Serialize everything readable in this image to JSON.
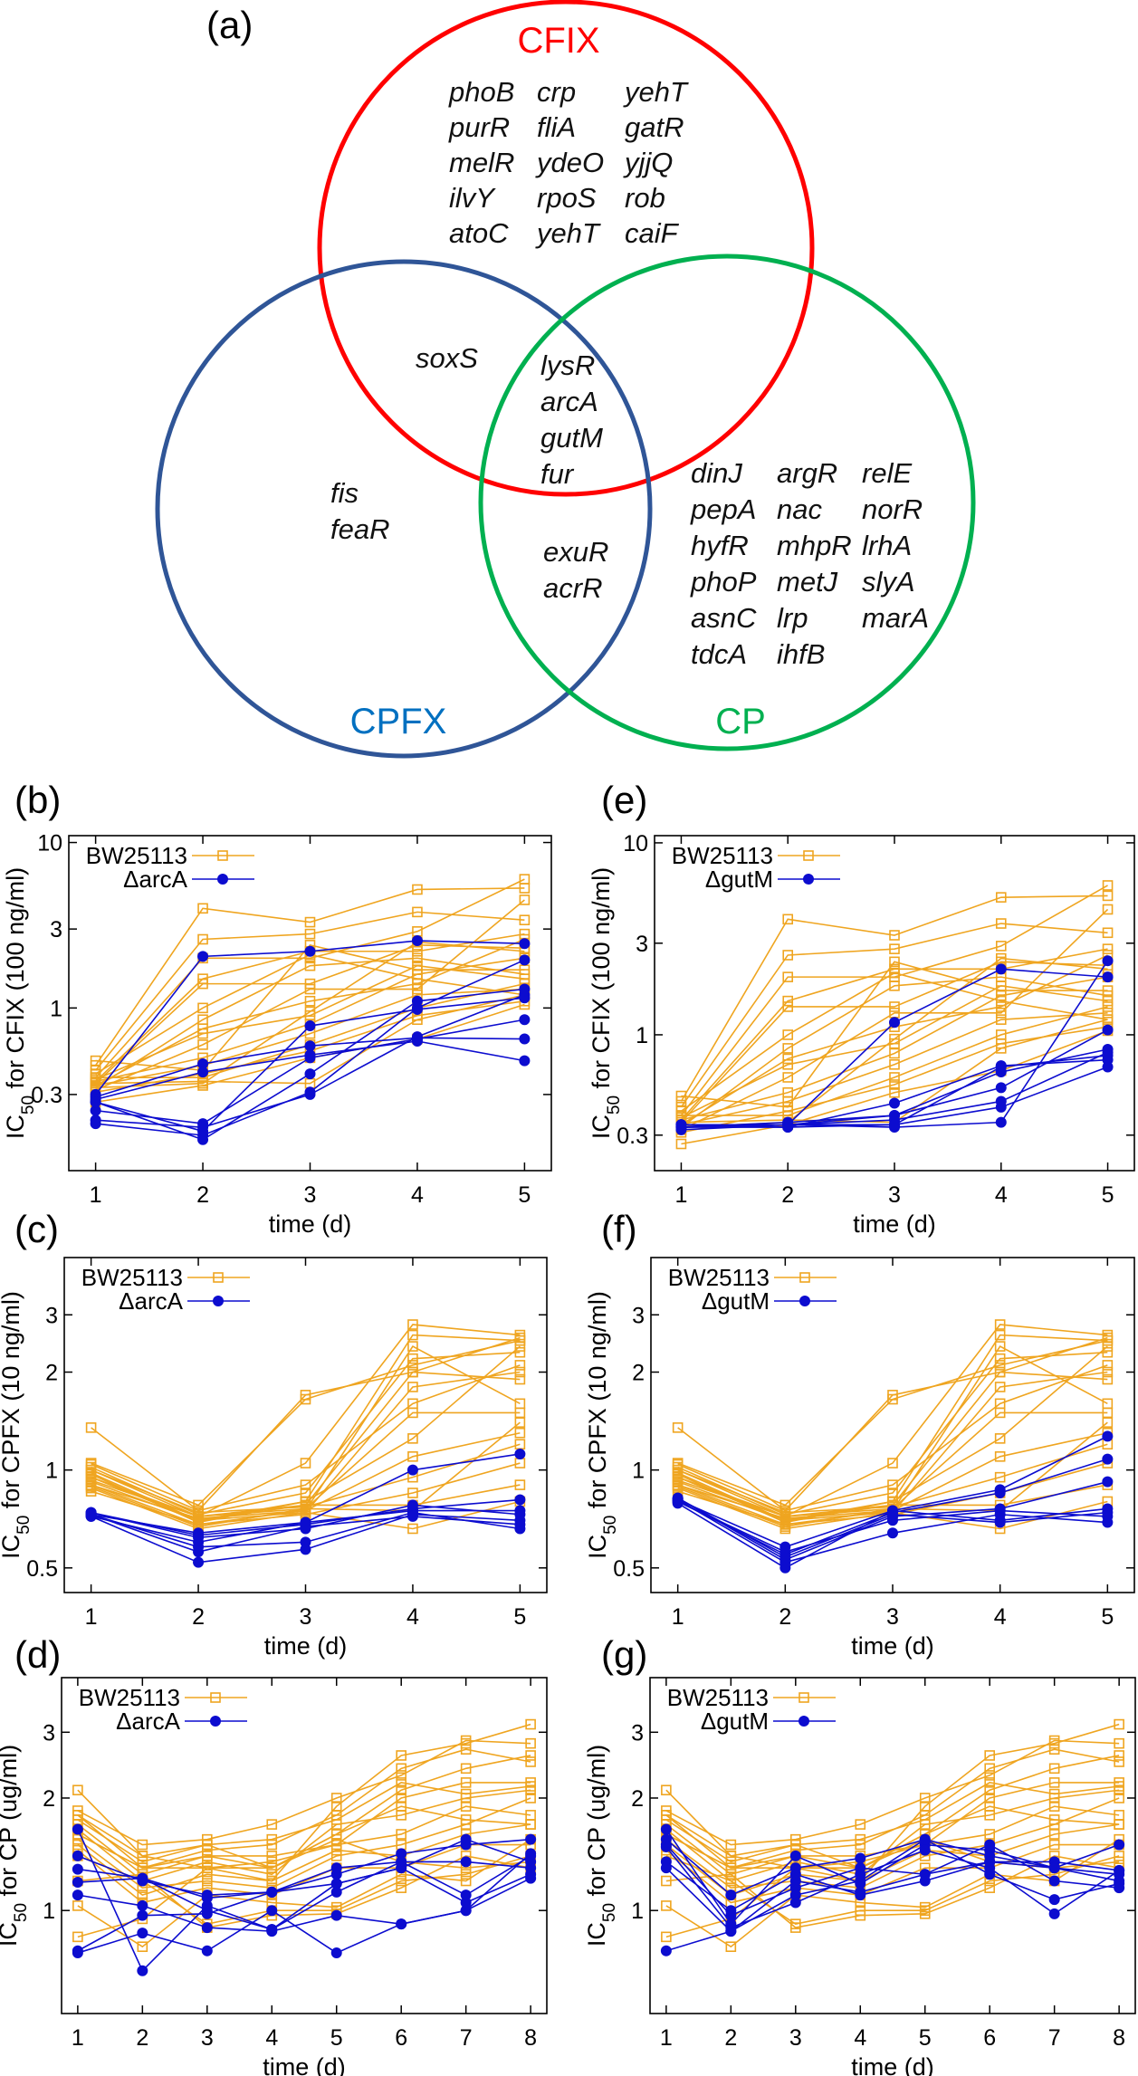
{
  "venn": {
    "panel_label": "(a)",
    "sets": [
      {
        "name": "CFIX",
        "label_color": "#ff0000",
        "circle_color": "#ff0000"
      },
      {
        "name": "CPFX",
        "label_color": "#0070c0",
        "circle_color": "#2f5597"
      },
      {
        "name": "CP",
        "label_color": "#00b050",
        "circle_color": "#00b050"
      }
    ],
    "regions": {
      "cfix_only": [
        [
          "phoB",
          "purR",
          "melR",
          "ilvY",
          "atoC"
        ],
        [
          "crp",
          "fliA",
          "ydeO",
          "rpoS",
          "yehT"
        ],
        [
          "yehT",
          "gatR",
          "yjjQ",
          "rob",
          "caiF"
        ]
      ],
      "cfix_cpfx": [
        [
          "soxS"
        ]
      ],
      "all_three": [
        [
          "lysR",
          "arcA",
          "gutM",
          "fur"
        ]
      ],
      "cpfx_only": [
        [
          "fis",
          "feaR"
        ]
      ],
      "cpfx_cp": [
        [
          "exuR",
          "acrR"
        ]
      ],
      "cp_only": [
        [
          "dinJ",
          "pepA",
          "hyfR",
          "phoP",
          "asnC",
          "tdcA"
        ],
        [
          "argR",
          "nac",
          "mhpR",
          "metJ",
          "lrp",
          "ihfB"
        ],
        [
          "relE",
          "norR",
          "lrhA",
          "slyA",
          "marA"
        ]
      ]
    }
  },
  "colors": {
    "control": "#efa520",
    "mutant": "#0c0ccf"
  },
  "datasets": {
    "cfix_bw25113": [
      [
        0.45,
        4.0,
        3.3,
        5.2,
        5.3
      ],
      [
        0.42,
        2.6,
        2.8,
        3.8,
        3.4
      ],
      [
        0.38,
        2.0,
        2.0,
        2.9,
        6.0
      ],
      [
        0.36,
        1.5,
        2.2,
        2.2,
        2.8
      ],
      [
        0.35,
        1.4,
        1.4,
        2.4,
        2.3
      ],
      [
        0.4,
        1.0,
        2.1,
        1.5,
        1.2
      ],
      [
        0.33,
        0.85,
        1.8,
        2.0,
        1.6
      ],
      [
        0.34,
        0.75,
        1.1,
        1.4,
        2.6
      ],
      [
        0.37,
        0.7,
        0.9,
        1.8,
        1.5
      ],
      [
        0.32,
        0.6,
        1.3,
        1.3,
        4.5
      ],
      [
        0.36,
        0.5,
        0.8,
        1.6,
        2.0
      ],
      [
        0.34,
        0.45,
        0.7,
        1.2,
        1.3
      ],
      [
        0.31,
        0.4,
        0.55,
        0.9,
        1.1
      ],
      [
        0.38,
        0.38,
        0.6,
        1.0,
        1.4
      ],
      [
        0.35,
        0.36,
        0.35,
        0.85,
        1.2
      ],
      [
        0.33,
        0.35,
        0.95,
        2.5,
        2.2
      ],
      [
        0.48,
        0.42,
        2.4,
        1.7,
        1.7
      ],
      [
        0.27,
        0.34,
        0.5,
        0.65,
        1.05
      ]
    ],
    "cpfx_bw25113": [
      [
        1.35,
        0.75,
        1.7,
        2.0,
        1.9
      ],
      [
        1.05,
        0.78,
        1.65,
        2.1,
        2.5
      ],
      [
        1.0,
        0.72,
        1.05,
        2.8,
        2.6
      ],
      [
        0.95,
        0.7,
        0.8,
        2.6,
        2.5
      ],
      [
        0.9,
        0.68,
        0.75,
        2.4,
        1.6
      ],
      [
        1.02,
        0.73,
        0.85,
        2.2,
        2.3
      ],
      [
        0.98,
        0.7,
        0.78,
        2.0,
        2.55
      ],
      [
        0.88,
        0.66,
        0.74,
        1.8,
        2.0
      ],
      [
        0.93,
        0.72,
        0.76,
        1.5,
        1.5
      ],
      [
        0.97,
        0.69,
        0.8,
        1.25,
        2.4
      ],
      [
        0.9,
        0.71,
        0.75,
        1.1,
        1.3
      ],
      [
        1.0,
        0.74,
        0.77,
        0.95,
        1.2
      ],
      [
        0.86,
        0.68,
        0.73,
        0.85,
        1.05
      ],
      [
        0.95,
        0.72,
        0.78,
        0.78,
        0.9
      ],
      [
        0.92,
        0.7,
        0.74,
        0.66,
        0.8
      ],
      [
        1.04,
        0.75,
        0.9,
        1.6,
        2.1
      ],
      [
        0.89,
        0.67,
        0.76,
        0.75,
        1.4
      ]
    ],
    "cp_bw25113": [
      [
        2.1,
        1.4,
        1.3,
        1.2,
        1.9,
        2.6,
        2.8,
        3.15
      ],
      [
        1.85,
        1.5,
        1.55,
        1.7,
        2.0,
        2.3,
        2.85,
        2.8
      ],
      [
        1.8,
        1.3,
        1.45,
        1.5,
        1.8,
        2.4,
        2.7,
        2.5
      ],
      [
        1.75,
        1.35,
        1.5,
        1.3,
        1.6,
        2.1,
        2.4,
        2.6
      ],
      [
        1.7,
        1.25,
        1.4,
        1.4,
        1.5,
        2.0,
        2.2,
        2.2
      ],
      [
        1.65,
        1.2,
        1.35,
        1.25,
        1.7,
        1.8,
        2.0,
        2.1
      ],
      [
        1.6,
        1.3,
        1.3,
        1.35,
        1.5,
        1.6,
        1.9,
        1.8
      ],
      [
        1.55,
        1.15,
        1.2,
        1.15,
        1.4,
        1.5,
        1.7,
        2.0
      ],
      [
        1.5,
        1.1,
        1.25,
        1.2,
        1.45,
        1.4,
        1.6,
        1.7
      ],
      [
        1.45,
        1.05,
        1.15,
        1.1,
        1.3,
        1.3,
        1.5,
        1.5
      ],
      [
        1.4,
        1.2,
        0.92,
        1.0,
        1.0,
        1.2,
        1.25,
        1.4
      ],
      [
        1.2,
        1.25,
        0.9,
        0.97,
        0.98,
        1.15,
        1.4,
        1.3
      ],
      [
        1.03,
        0.8,
        1.1,
        1.05,
        1.02,
        1.25,
        1.2,
        1.55
      ],
      [
        0.85,
        0.95,
        1.3,
        1.3,
        1.6,
        1.9,
        1.75,
        1.7
      ],
      [
        1.8,
        1.4,
        1.5,
        1.55,
        1.75,
        2.2,
        2.05,
        2.15
      ],
      [
        1.6,
        1.3,
        1.4,
        1.3,
        1.55,
        1.35,
        1.3,
        1.35
      ]
    ]
  },
  "chart_data": [
    {
      "panel": "(b)",
      "type": "line",
      "xlabel": "time (d)",
      "ylabel_prefix": "IC",
      "ylabel_sub": "50",
      "ylabel_suffix": " for CFIX (100 ng/ml)",
      "yscale": "log",
      "xlim": [
        0.75,
        5.25
      ],
      "ylim": [
        0.104,
        11
      ],
      "xticks": [
        1,
        2,
        3,
        4,
        5
      ],
      "yticks": [
        0.3,
        1,
        3,
        10
      ],
      "legend": "top-left",
      "grid": false,
      "series": [
        {
          "name": "BW25113",
          "marker": "open-square",
          "color": "#efa520",
          "dataset": "cfix_bw25113"
        },
        {
          "name": "ΔarcA",
          "marker": "filled-circle",
          "color": "#0c0ccf",
          "lines": [
            [
              0.3,
              2.05,
              2.2,
              2.55,
              2.45
            ],
            [
              0.29,
              0.46,
              0.59,
              0.66,
              0.65
            ],
            [
              0.28,
              0.41,
              0.52,
              0.63,
              0.48
            ],
            [
              0.24,
              0.2,
              0.5,
              0.65,
              0.85
            ],
            [
              0.21,
              0.19,
              0.3,
              0.67,
              1.2
            ],
            [
              0.2,
              0.17,
              0.31,
              1.0,
              1.95
            ],
            [
              0.27,
              0.18,
              0.78,
              0.98,
              1.15
            ],
            [
              0.27,
              0.16,
              0.4,
              1.1,
              1.3
            ]
          ]
        }
      ]
    },
    {
      "panel": "(c)",
      "type": "line",
      "xlabel": "time (d)",
      "ylabel_prefix": "IC",
      "ylabel_sub": "50",
      "ylabel_suffix": " for CPFX (10 ng/ml)",
      "yscale": "log",
      "xlim": [
        0.75,
        5.25
      ],
      "ylim": [
        0.42,
        4.5
      ],
      "xticks": [
        1,
        2,
        3,
        4,
        5
      ],
      "yticks": [
        0.5,
        1,
        2,
        3
      ],
      "legend": "top-left",
      "grid": false,
      "series": [
        {
          "name": "BW25113",
          "marker": "open-square",
          "color": "#efa520",
          "dataset": "cpfx_bw25113"
        },
        {
          "name": "ΔarcA",
          "marker": "filled-circle",
          "color": "#0c0ccf",
          "lines": [
            [
              0.73,
              0.64,
              0.69,
              1.0,
              1.12
            ],
            [
              0.74,
              0.63,
              0.68,
              0.76,
              0.81
            ],
            [
              0.72,
              0.6,
              0.69,
              0.75,
              0.75
            ],
            [
              0.73,
              0.58,
              0.6,
              0.74,
              0.66
            ],
            [
              0.72,
              0.52,
              0.57,
              0.73,
              0.7
            ],
            [
              0.74,
              0.62,
              0.66,
              0.78,
              0.73
            ],
            [
              0.73,
              0.56,
              0.67,
              0.72,
              0.68
            ]
          ]
        }
      ]
    },
    {
      "panel": "(d)",
      "type": "line",
      "xlabel": "time (d)",
      "ylabel_prefix": "IC",
      "ylabel_sub": "50",
      "ylabel_suffix": " for CP (ug/ml)",
      "yscale": "log",
      "xlim": [
        0.75,
        8.25
      ],
      "ylim": [
        0.53,
        4.2
      ],
      "xticks": [
        1,
        2,
        3,
        4,
        5,
        6,
        7,
        8
      ],
      "yticks": [
        1,
        2,
        3
      ],
      "legend": "top-left",
      "grid": false,
      "series": [
        {
          "name": "BW25113",
          "marker": "open-square",
          "color": "#efa520",
          "dataset": "cp_bw25113"
        },
        {
          "name": "ΔarcA",
          "marker": "filled-circle",
          "color": "#0c0ccf",
          "lines": [
            [
              1.65,
              0.69,
              1.03,
              0.89,
              1.12,
              1.35,
              1.1,
              1.4
            ],
            [
              1.4,
              1.2,
              1.1,
              1.12,
              1.25,
              1.42,
              1.5,
              1.55
            ],
            [
              1.29,
              1.22,
              1.08,
              1.12,
              1.3,
              1.35,
              1.35,
              1.3
            ],
            [
              1.19,
              1.22,
              1.0,
              0.89,
              1.18,
              1.3,
              1.55,
              1.35
            ],
            [
              1.1,
              1.03,
              0.9,
              0.88,
              0.97,
              0.92,
              1.0,
              1.42
            ],
            [
              0.78,
              0.97,
              0.98,
              1.12,
              1.18,
              1.3,
              1.05,
              1.25
            ],
            [
              0.77,
              0.87,
              0.78,
              1.0,
              0.77,
              0.92,
              1.0,
              1.22
            ]
          ]
        }
      ]
    },
    {
      "panel": "(e)",
      "type": "line",
      "xlabel": "time (d)",
      "ylabel_prefix": "IC",
      "ylabel_sub": "50",
      "ylabel_suffix": " for CFIX (100 ng/ml)",
      "yscale": "log",
      "xlim": [
        0.75,
        5.25
      ],
      "ylim": [
        0.196,
        10.9
      ],
      "xticks": [
        1,
        2,
        3,
        4,
        5
      ],
      "yticks": [
        0.3,
        1,
        3,
        10
      ],
      "legend": "top-left",
      "grid": false,
      "series": [
        {
          "name": "BW25113",
          "marker": "open-square",
          "color": "#efa520",
          "dataset": "cfix_bw25113"
        },
        {
          "name": "ΔgutM",
          "marker": "filled-circle",
          "color": "#0c0ccf",
          "lines": [
            [
              0.34,
              0.34,
              1.16,
              2.2,
              2.0
            ],
            [
              0.33,
              0.34,
              0.33,
              0.35,
              2.43
            ],
            [
              0.34,
              0.33,
              0.44,
              0.69,
              0.74
            ],
            [
              0.33,
              0.35,
              0.38,
              0.53,
              1.06
            ],
            [
              0.32,
              0.34,
              0.36,
              0.45,
              0.81
            ],
            [
              0.33,
              0.33,
              0.34,
              0.42,
              0.68
            ],
            [
              0.34,
              0.34,
              0.38,
              0.64,
              0.84
            ],
            [
              0.33,
              0.34,
              0.34,
              0.68,
              0.78
            ]
          ]
        }
      ]
    },
    {
      "panel": "(f)",
      "type": "line",
      "xlabel": "time (d)",
      "ylabel_prefix": "IC",
      "ylabel_sub": "50",
      "ylabel_suffix": " for CPFX (10 ng/ml)",
      "yscale": "log",
      "xlim": [
        0.75,
        5.25
      ],
      "ylim": [
        0.42,
        4.5
      ],
      "xticks": [
        1,
        2,
        3,
        4,
        5
      ],
      "yticks": [
        0.5,
        1,
        2,
        3
      ],
      "legend": "top-left",
      "grid": false,
      "series": [
        {
          "name": "BW25113",
          "marker": "open-square",
          "color": "#efa520",
          "dataset": "cpfx_bw25113"
        },
        {
          "name": "ΔgutM",
          "marker": "filled-circle",
          "color": "#0c0ccf",
          "lines": [
            [
              0.81,
              0.58,
              0.75,
              0.87,
              1.27
            ],
            [
              0.8,
              0.55,
              0.74,
              0.85,
              1.08
            ],
            [
              0.82,
              0.53,
              0.72,
              0.76,
              0.92
            ],
            [
              0.79,
              0.5,
              0.75,
              0.7,
              0.76
            ],
            [
              0.81,
              0.52,
              0.64,
              0.73,
              0.69
            ],
            [
              0.8,
              0.56,
              0.7,
              0.75,
              0.72
            ],
            [
              0.82,
              0.54,
              0.73,
              0.69,
              0.74
            ]
          ]
        }
      ]
    },
    {
      "panel": "(g)",
      "type": "line",
      "xlabel": "time (d)",
      "ylabel_prefix": "IC",
      "ylabel_sub": "50",
      "ylabel_suffix": " for CP (ug/ml)",
      "yscale": "log",
      "xlim": [
        0.75,
        8.25
      ],
      "ylim": [
        0.53,
        4.2
      ],
      "xticks": [
        1,
        2,
        3,
        4,
        5,
        6,
        7,
        8
      ],
      "yticks": [
        1,
        2,
        3
      ],
      "legend": "top-left",
      "grid": false,
      "series": [
        {
          "name": "BW25113",
          "marker": "open-square",
          "color": "#efa520",
          "dataset": "cp_bw25113"
        },
        {
          "name": "ΔgutM",
          "marker": "filled-circle",
          "color": "#0c0ccf",
          "lines": [
            [
              1.65,
              0.92,
              1.4,
              1.18,
              1.5,
              1.45,
              1.3,
              1.5
            ],
            [
              1.55,
              1.1,
              1.3,
              1.38,
              1.55,
              1.4,
              1.3,
              1.25
            ],
            [
              1.5,
              0.97,
              1.15,
              1.3,
              1.25,
              1.5,
              1.2,
              1.15
            ],
            [
              1.48,
              0.9,
              1.05,
              1.25,
              1.45,
              1.3,
              0.98,
              1.28
            ],
            [
              1.35,
              1.0,
              1.25,
              1.1,
              1.2,
              1.35,
              1.35,
              1.28
            ],
            [
              1.3,
              0.88,
              1.1,
              1.2,
              1.55,
              1.25,
              1.07,
              1.18
            ],
            [
              0.78,
              0.88,
              1.2,
              1.12,
              1.25,
              1.35,
              1.3,
              1.2
            ]
          ]
        }
      ]
    }
  ]
}
